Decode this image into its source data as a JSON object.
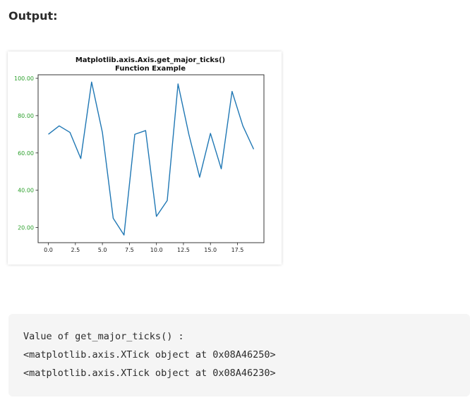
{
  "page": {
    "heading": "Output:"
  },
  "chart_data": {
    "type": "line",
    "title_line1": "Matplotlib.axis.Axis.get_major_ticks()",
    "title_line2": "Function Example",
    "xlabel": "",
    "ylabel": "",
    "xlim": [
      -0.95,
      19.95
    ],
    "ylim": [
      11.9,
      101.9
    ],
    "xticks": [
      0.0,
      2.5,
      5.0,
      7.5,
      10.0,
      12.5,
      15.0,
      17.5
    ],
    "xtick_labels": [
      "0.0",
      "2.5",
      "5.0",
      "7.5",
      "10.0",
      "12.5",
      "15.0",
      "17.5"
    ],
    "yticks": [
      20,
      40,
      60,
      80,
      100
    ],
    "ytick_labels": [
      "20.00",
      "40.00",
      "60.00",
      "80.00",
      "100.00"
    ],
    "ytick_label_color": "#2ca02c",
    "line_color": "#1f77b4",
    "grid": false,
    "series": [
      {
        "x": [
          0,
          1,
          2,
          3,
          4,
          5,
          6,
          7,
          8,
          9,
          10,
          11,
          12,
          13,
          14,
          15,
          16,
          17,
          18,
          19
        ],
        "values": [
          70,
          74.5,
          71,
          57,
          98,
          71,
          25,
          16,
          70,
          72,
          26,
          34.5,
          97,
          70,
          47,
          70.5,
          51.5,
          93,
          74.5,
          62
        ]
      }
    ]
  },
  "output": {
    "lines": [
      "Value of get_major_ticks() :",
      "<matplotlib.axis.XTick object at 0x08A46250>",
      "<matplotlib.axis.XTick object at 0x08A46230>"
    ]
  }
}
